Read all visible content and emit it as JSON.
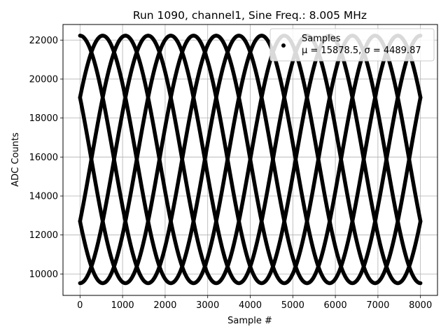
{
  "chart_data": {
    "type": "scatter",
    "title": "Run 1090, channel1, Sine Freq.: 8.005 MHz",
    "xlabel": "Sample #",
    "ylabel": "ADC Counts",
    "xlim": [
      -400,
      8400
    ],
    "ylim": [
      8900,
      22800
    ],
    "xticks": [
      0,
      1000,
      2000,
      3000,
      4000,
      5000,
      6000,
      7000,
      8000
    ],
    "yticks": [
      10000,
      12000,
      14000,
      16000,
      18000,
      20000,
      22000
    ],
    "grid": true,
    "legend": {
      "location": "top-right",
      "entries": [
        "Samples"
      ],
      "stats_text": "μ = 15878.5, σ = 4489.87"
    },
    "series": [
      {
        "name": "Samples",
        "model": "y = offset + amplitude * sin(2*pi*x/period + phase)",
        "x_range": [
          0,
          8000
        ],
        "offset": 15878.5,
        "amplitude": 6350,
        "period": 3200,
        "phases_deg": [
          30,
          150,
          270,
          90,
          210,
          330
        ],
        "color": "#000000"
      }
    ]
  }
}
